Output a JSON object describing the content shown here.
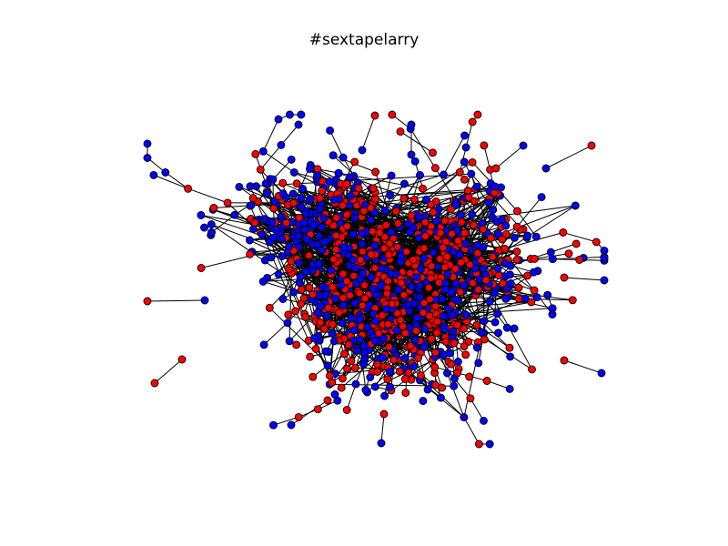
{
  "title": "#sextapelarry",
  "colors": {
    "background": "#ffffff",
    "edge": "#000000",
    "node_stroke": "#000000",
    "group_a": "#ff0000",
    "group_b": "#0000ff"
  }
}
